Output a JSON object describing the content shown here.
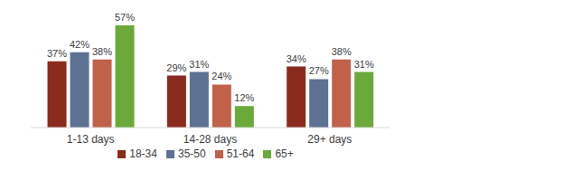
{
  "chart_data": {
    "type": "bar",
    "categories": [
      "1-13 days",
      "14-28 days",
      "29+ days"
    ],
    "series": [
      {
        "name": "18-34",
        "color": "#8B2A1E",
        "values": [
          37,
          29,
          34
        ],
        "value_labels": [
          "37%",
          "29%",
          "34%"
        ]
      },
      {
        "name": "35-50",
        "color": "#5D7193",
        "values": [
          42,
          31,
          27
        ],
        "value_labels": [
          "42%",
          "31%",
          "27%"
        ]
      },
      {
        "name": "51-64",
        "color": "#C0614A",
        "values": [
          38,
          24,
          38
        ],
        "value_labels": [
          "38%",
          "24%",
          "38%"
        ]
      },
      {
        "name": "65+",
        "color": "#6BAA3A",
        "values": [
          57,
          12,
          31
        ],
        "value_labels": [
          "57%",
          "12%",
          "31%"
        ]
      }
    ],
    "data_labels": true,
    "tick_labels": "x",
    "legend": "bottom",
    "grid": false
  }
}
